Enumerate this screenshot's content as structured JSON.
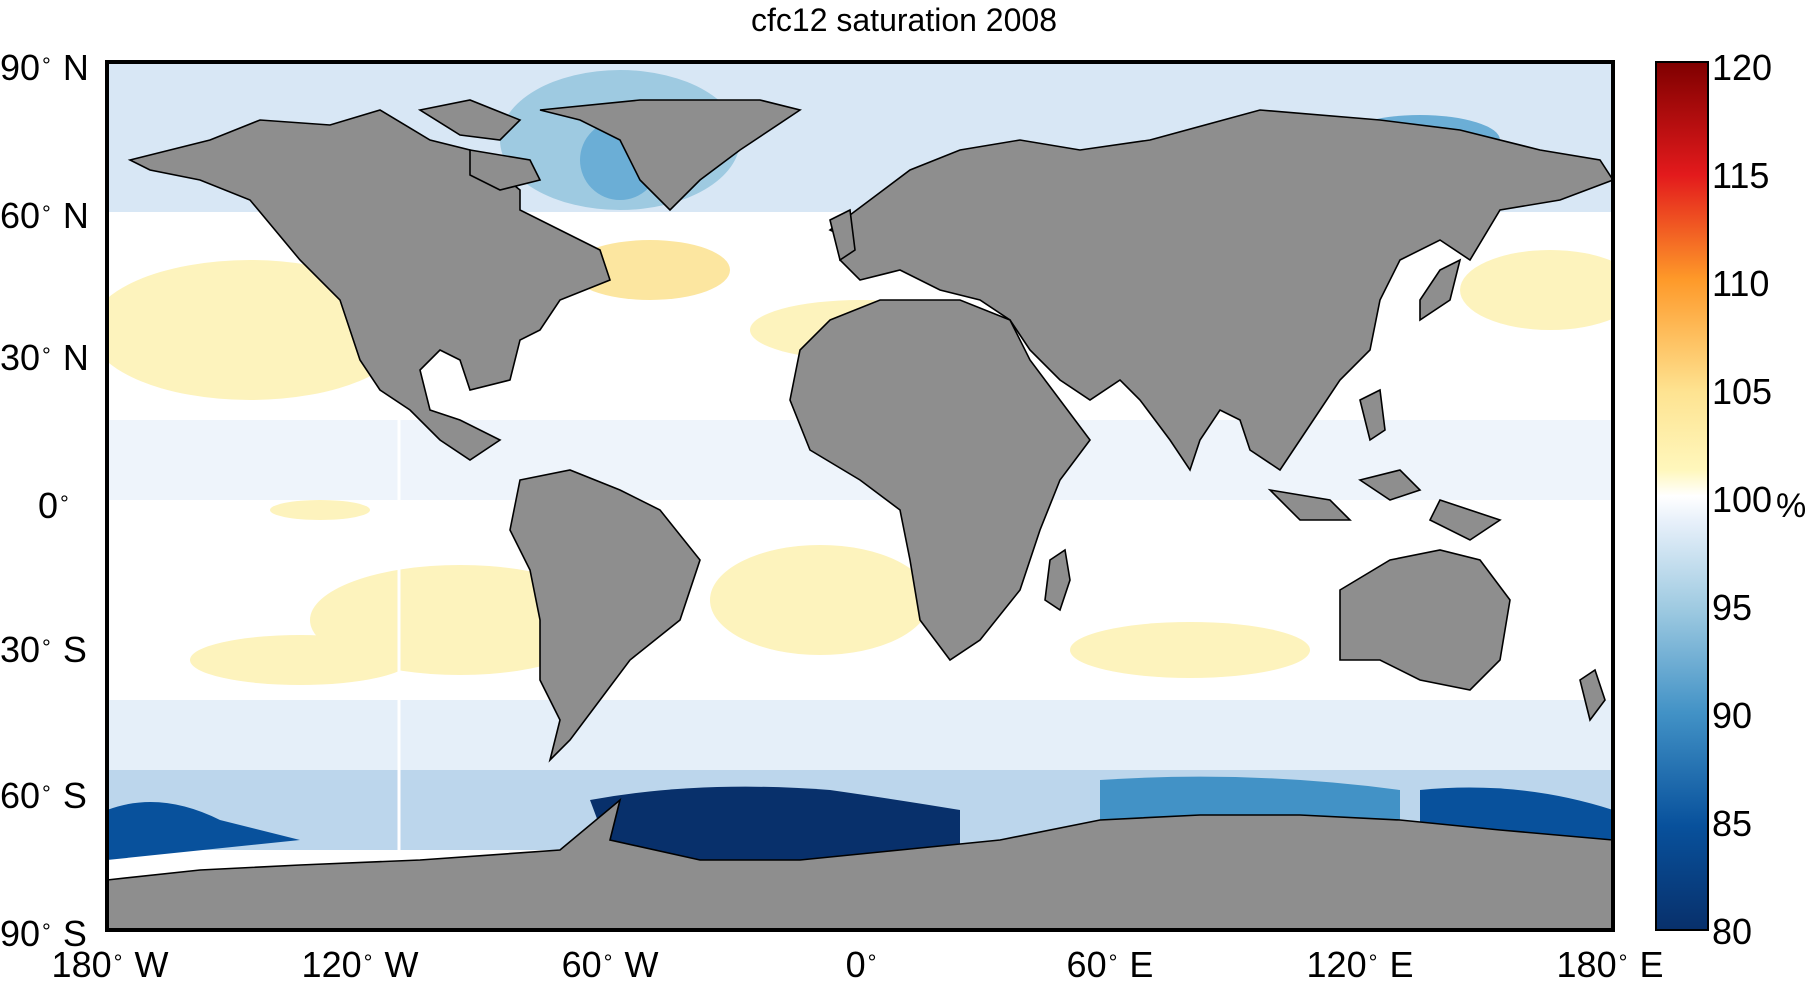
{
  "title": "cfc12 saturation 2008",
  "map": {
    "projection": "equirectangular",
    "land_color": "#8e8e8e",
    "coastline_color": "#000000",
    "ocean_background": "#ffffff"
  },
  "lat_ticks": [
    {
      "deg": "90",
      "hemi": "N"
    },
    {
      "deg": "60",
      "hemi": "N"
    },
    {
      "deg": "30",
      "hemi": "N"
    },
    {
      "deg": "0",
      "hemi": ""
    },
    {
      "deg": "30",
      "hemi": "S"
    },
    {
      "deg": "60",
      "hemi": "S"
    },
    {
      "deg": "90",
      "hemi": "S"
    }
  ],
  "lon_ticks": [
    {
      "deg": "180",
      "hemi": "W"
    },
    {
      "deg": "120",
      "hemi": "W"
    },
    {
      "deg": "60",
      "hemi": "W"
    },
    {
      "deg": "0",
      "hemi": ""
    },
    {
      "deg": "60",
      "hemi": "E"
    },
    {
      "deg": "120",
      "hemi": "E"
    },
    {
      "deg": "180",
      "hemi": "E"
    }
  ],
  "colorbar": {
    "min": 80,
    "max": 120,
    "tick_labels": [
      "120",
      "115",
      "110",
      "105",
      "100",
      "95",
      "90",
      "85",
      "80"
    ],
    "unit": "%",
    "colors": [
      "#08306b",
      "#08519c",
      "#2171b5",
      "#4292c6",
      "#6baed6",
      "#9ecae1",
      "#c6dbef",
      "#deebf7",
      "#f7fbff",
      "#ffffff",
      "#fff7bc",
      "#fee391",
      "#fec44f",
      "#fe9929",
      "#ec7014",
      "#cc4c02",
      "#d7301f",
      "#b30000",
      "#7f0000"
    ]
  }
}
